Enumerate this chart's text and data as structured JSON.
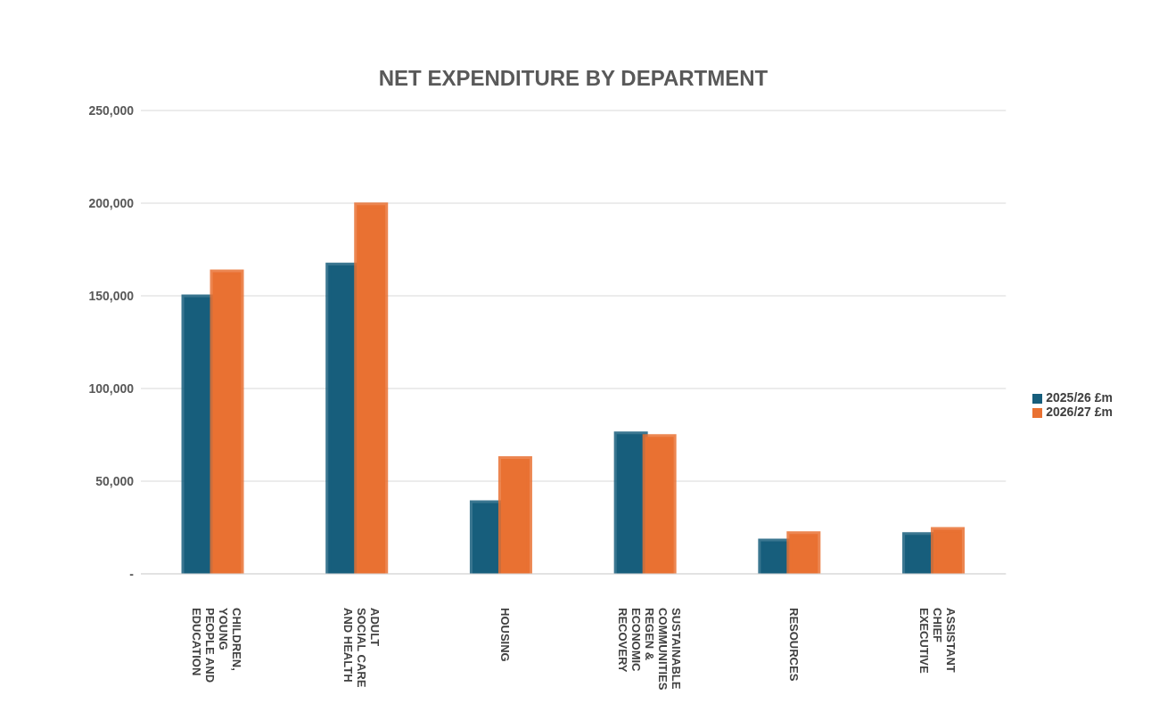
{
  "chart_data": {
    "type": "bar",
    "title": "NET EXPENDITURE BY DEPARTMENT",
    "categories": [
      "CHILDREN, YOUNG PEOPLE AND EDUCATION",
      "ADULT SOCIAL CARE AND HEALTH",
      "HOUSING",
      "SUSTAINABLE COMMUNITIES REGEN & ECONOMIC RECOVERY",
      "RESOURCES",
      "ASSISTANT CHIEF EXECUTIVE"
    ],
    "series": [
      {
        "name": "2025/26 £m",
        "color": "#175e7c",
        "values": [
          149300,
          166500,
          38200,
          75400,
          17600,
          21000
        ]
      },
      {
        "name": "2026/27 £m",
        "color": "#e97132",
        "values": [
          162700,
          198900,
          62000,
          73900,
          21500,
          23800
        ]
      }
    ],
    "ylim": [
      0,
      250000
    ],
    "yticks": [
      {
        "value": 0,
        "label": "-"
      },
      {
        "value": 50000,
        "label": "50,000"
      },
      {
        "value": 100000,
        "label": "100,000"
      },
      {
        "value": 150000,
        "label": "150,000"
      },
      {
        "value": 200000,
        "label": "200,000"
      },
      {
        "value": 250000,
        "label": "250,000"
      }
    ],
    "grid": "y",
    "legend": "right"
  }
}
